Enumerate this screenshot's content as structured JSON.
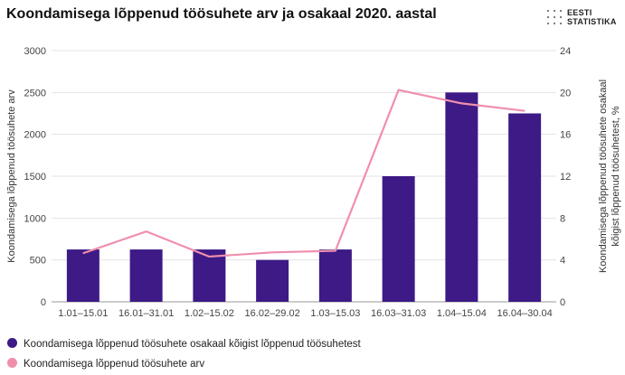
{
  "title": "Koondamisega lõppenud töösuhete arv ja osakaal 2020. aastal",
  "logo": {
    "line1": "EESTI",
    "line2": "STATISTIKA"
  },
  "colors": {
    "bar": "#3d1a86",
    "line": "#f08fac",
    "grid": "#e3e3e3"
  },
  "chart_data": {
    "type": "bar+line",
    "categories": [
      "1.01–15.01",
      "16.01–31.01",
      "1.02–15.02",
      "16.02–29.02",
      "1.03–15.03",
      "16.03–31.03",
      "1.04–15.04",
      "16.04–30.04"
    ],
    "left_axis": {
      "label": "Koondamisega lõppenud töösuhete arv",
      "range": [
        0,
        3000
      ],
      "ticks": [
        "0",
        "500",
        "1000",
        "1500",
        "2000",
        "2500",
        "3000"
      ]
    },
    "right_axis": {
      "label_line1": "Koondamisega lõppenud töösuhete osakaal",
      "label_line2": "kõigist lõppenud töösuhetest, %",
      "range": [
        0,
        24
      ],
      "ticks": [
        "0",
        "4",
        "8",
        "12",
        "16",
        "20",
        "24"
      ]
    },
    "series": [
      {
        "name": "Koondamisega lõppenud töösuhete osakaal kõigist lõppenud töösuhetest",
        "type": "bar",
        "axis": "right",
        "values": [
          5,
          5,
          5,
          4,
          5,
          12,
          20,
          18
        ]
      },
      {
        "name": "Koondamisega lõppenud töösuhete arv",
        "type": "line",
        "axis": "left",
        "values": [
          580,
          840,
          540,
          590,
          610,
          2530,
          2370,
          2280
        ]
      }
    ],
    "grid": true,
    "legend_position": "bottom-left"
  }
}
